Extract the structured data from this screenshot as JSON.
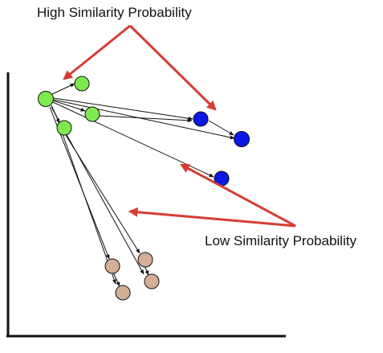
{
  "annotations": {
    "high_label": "High Similarity Probability",
    "low_label": "Low Similarity Probability"
  },
  "colors": {
    "green_node": "#7ee84f",
    "blue_node": "#0a17e6",
    "tan_node": "#d4ae97",
    "edge": "#111111",
    "annotation_arrow": "#d53d33",
    "axis": "#111111"
  },
  "groups": {
    "source": "green",
    "near_neighbors": "blue",
    "far_neighbors": "tan"
  }
}
